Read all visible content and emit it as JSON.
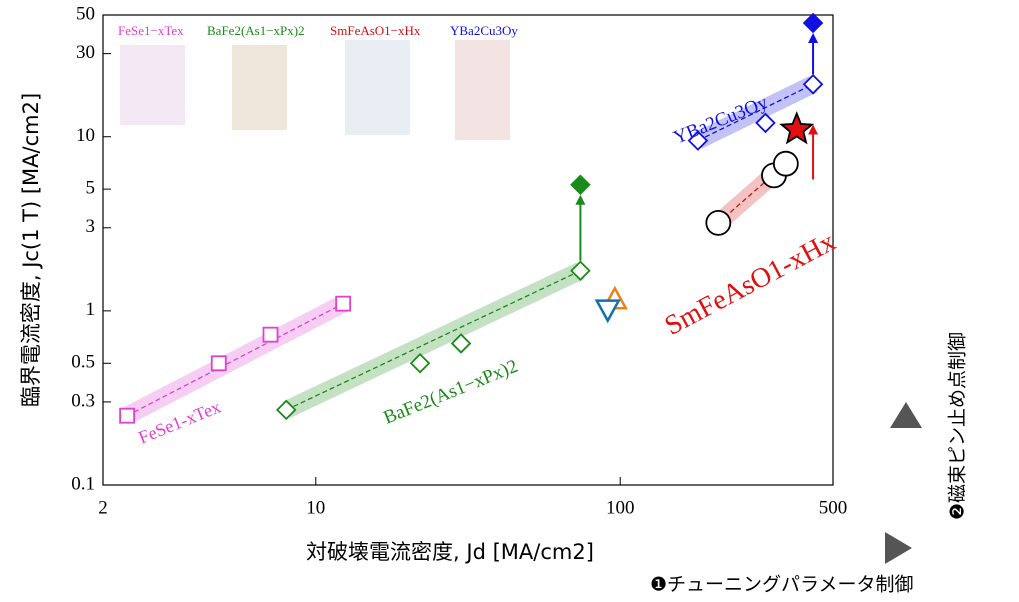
{
  "chart_data": {
    "type": "scatter",
    "xlabel": "対破壊電流密度, Jd [MA/cm2]",
    "ylabel": "臨界電流密度, Jc(1 T) [MA/cm2]",
    "xlog": true,
    "ylog": true,
    "xlim": [
      2,
      500
    ],
    "ylim": [
      0.1,
      50
    ],
    "xticks": [
      2,
      10,
      100,
      500
    ],
    "yticks": [
      0.1,
      0.3,
      0.5,
      1,
      3,
      5,
      10,
      30,
      50
    ],
    "series": [
      {
        "name": "FeSe1−xTex",
        "color": "#e040d0",
        "marker": "square",
        "x": [
          2.4,
          4.8,
          7.1,
          12.3
        ],
        "values": [
          0.25,
          0.5,
          0.73,
          1.1
        ]
      },
      {
        "name": "BaFe2(As1−xPx)2",
        "color": "#1a8a1a",
        "marker": "diamond",
        "x": [
          8,
          22,
          30,
          74
        ],
        "values": [
          0.27,
          0.5,
          0.65,
          1.7
        ]
      },
      {
        "name": "SmFeAsO1−xHx",
        "color": "#d01010",
        "marker": "circle",
        "x": [
          210,
          320,
          350
        ],
        "values": [
          3.2,
          6,
          7
        ]
      },
      {
        "name": "YBa2Cu3Oy",
        "color": "#1010e0",
        "marker": "diamond",
        "x": [
          180,
          300,
          430
        ],
        "values": [
          9.5,
          12,
          20
        ]
      }
    ],
    "extra_points": [
      {
        "marker": "diamond-filled",
        "color": "#1a8a1a",
        "x": 74,
        "value": 5.3
      },
      {
        "marker": "triangle",
        "color": "#f08010",
        "x": 96,
        "value": 1.15
      },
      {
        "marker": "triangle-down",
        "color": "#1070b0",
        "x": 91,
        "value": 1.03
      },
      {
        "marker": "star",
        "color": "#e01010",
        "x": 380,
        "value": 11
      },
      {
        "marker": "diamond-filled",
        "color": "#1010e0",
        "x": 430,
        "value": 45
      }
    ],
    "annotations": {
      "fese": "FeSe1-xTex",
      "bafe": "BaFe2(As1−xPx)2",
      "sm": "SmFeAsO1-xHx",
      "ybco": "YBa2Cu3Oy",
      "control2": "❷磁束ピン止め点制御",
      "control1": "❶チューニングパラメータ制御"
    }
  }
}
